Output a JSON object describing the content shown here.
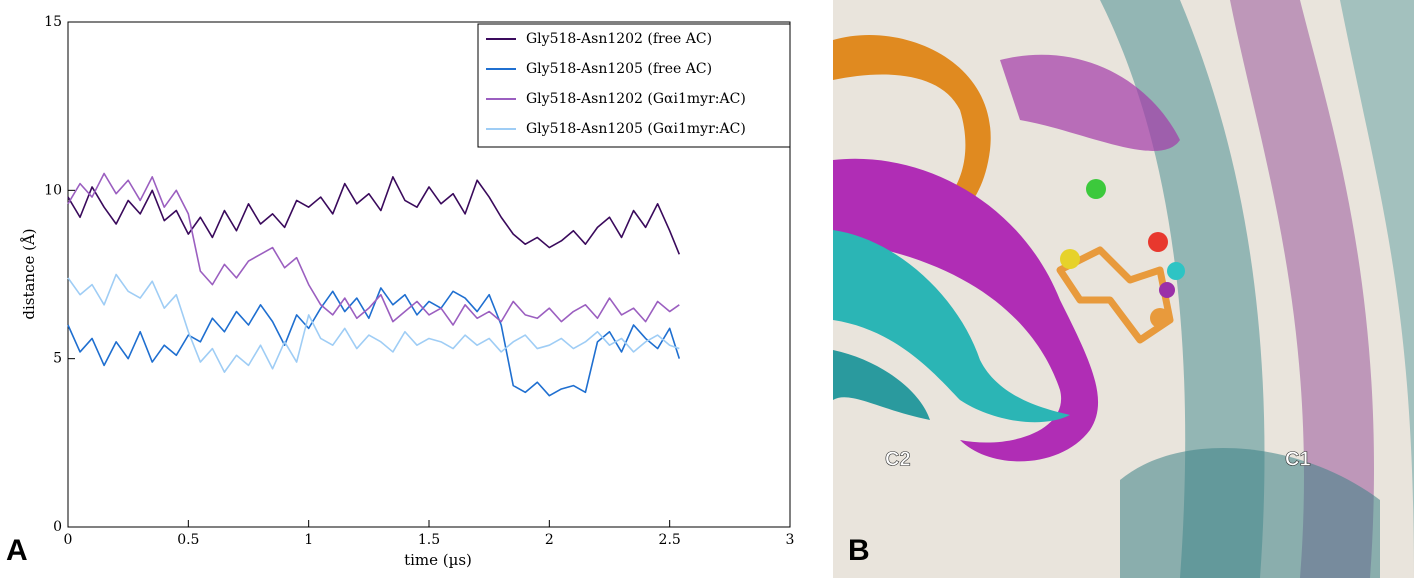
{
  "chart_data": {
    "type": "line",
    "panel_label": "A",
    "x_label": "time (µs)",
    "y_label": "distance (Å)",
    "xlim": [
      0,
      3
    ],
    "ylim": [
      0,
      15
    ],
    "xticks": [
      0,
      0.5,
      1,
      1.5,
      2,
      2.5,
      3
    ],
    "yticks": [
      0,
      5,
      10,
      15
    ],
    "legend": "upper right",
    "x": [
      0,
      0.05,
      0.1,
      0.15,
      0.2,
      0.25,
      0.3,
      0.35,
      0.4,
      0.45,
      0.5,
      0.55,
      0.6,
      0.65,
      0.7,
      0.75,
      0.8,
      0.85,
      0.9,
      0.95,
      1,
      1.05,
      1.1,
      1.15,
      1.2,
      1.25,
      1.3,
      1.35,
      1.4,
      1.45,
      1.5,
      1.55,
      1.6,
      1.65,
      1.7,
      1.75,
      1.8,
      1.85,
      1.9,
      1.95,
      2,
      2.05,
      2.1,
      2.15,
      2.2,
      2.25,
      2.3,
      2.35,
      2.4,
      2.45,
      2.5,
      2.54
    ],
    "series": [
      {
        "name": "Gly518-Asn1202 (free AC)",
        "color": "#3a0a5c",
        "values": [
          9.8,
          9.2,
          10.1,
          9.5,
          9.0,
          9.7,
          9.3,
          10.0,
          9.1,
          9.4,
          8.7,
          9.2,
          8.6,
          9.4,
          8.8,
          9.6,
          9.0,
          9.3,
          8.9,
          9.7,
          9.5,
          9.8,
          9.3,
          10.2,
          9.6,
          9.9,
          9.4,
          10.4,
          9.7,
          9.5,
          10.1,
          9.6,
          9.9,
          9.3,
          10.3,
          9.8,
          9.2,
          8.7,
          8.4,
          8.6,
          8.3,
          8.5,
          8.8,
          8.4,
          8.9,
          9.2,
          8.6,
          9.4,
          8.9,
          9.6,
          8.8,
          8.1
        ]
      },
      {
        "name": "Gly518-Asn1205 (free AC)",
        "color": "#1f6fd0",
        "values": [
          6.0,
          5.2,
          5.6,
          4.8,
          5.5,
          5.0,
          5.8,
          4.9,
          5.4,
          5.1,
          5.7,
          5.5,
          6.2,
          5.8,
          6.4,
          6.0,
          6.6,
          6.1,
          5.4,
          6.3,
          5.9,
          6.5,
          7.0,
          6.4,
          6.8,
          6.2,
          7.1,
          6.6,
          6.9,
          6.3,
          6.7,
          6.5,
          7.0,
          6.8,
          6.4,
          6.9,
          6.0,
          4.2,
          4.0,
          4.3,
          3.9,
          4.1,
          4.2,
          4.0,
          5.5,
          5.8,
          5.2,
          6.0,
          5.6,
          5.3,
          5.9,
          5.0
        ]
      },
      {
        "name": "Gly518-Asn1202 (Gαi1myr:AC)",
        "color": "#9b5fc0",
        "values": [
          9.6,
          10.2,
          9.8,
          10.5,
          9.9,
          10.3,
          9.7,
          10.4,
          9.5,
          10.0,
          9.3,
          7.6,
          7.2,
          7.8,
          7.4,
          7.9,
          8.1,
          8.3,
          7.7,
          8.0,
          7.2,
          6.6,
          6.3,
          6.8,
          6.2,
          6.5,
          6.9,
          6.1,
          6.4,
          6.7,
          6.3,
          6.5,
          6.0,
          6.6,
          6.2,
          6.4,
          6.1,
          6.7,
          6.3,
          6.2,
          6.5,
          6.1,
          6.4,
          6.6,
          6.2,
          6.8,
          6.3,
          6.5,
          6.1,
          6.7,
          6.4,
          6.6
        ]
      },
      {
        "name": "Gly518-Asn1205 (Gαi1myr:AC)",
        "color": "#9fcdf5",
        "values": [
          7.4,
          6.9,
          7.2,
          6.6,
          7.5,
          7.0,
          6.8,
          7.3,
          6.5,
          6.9,
          5.8,
          4.9,
          5.3,
          4.6,
          5.1,
          4.8,
          5.4,
          4.7,
          5.5,
          4.9,
          6.3,
          5.6,
          5.4,
          5.9,
          5.3,
          5.7,
          5.5,
          5.2,
          5.8,
          5.4,
          5.6,
          5.5,
          5.3,
          5.7,
          5.4,
          5.6,
          5.2,
          5.5,
          5.7,
          5.3,
          5.4,
          5.6,
          5.3,
          5.5,
          5.8,
          5.4,
          5.6,
          5.2,
          5.5,
          5.7,
          5.4,
          5.3
        ]
      }
    ]
  },
  "panel_b": {
    "label": "B",
    "annotations": [
      "C2",
      "C1"
    ]
  }
}
